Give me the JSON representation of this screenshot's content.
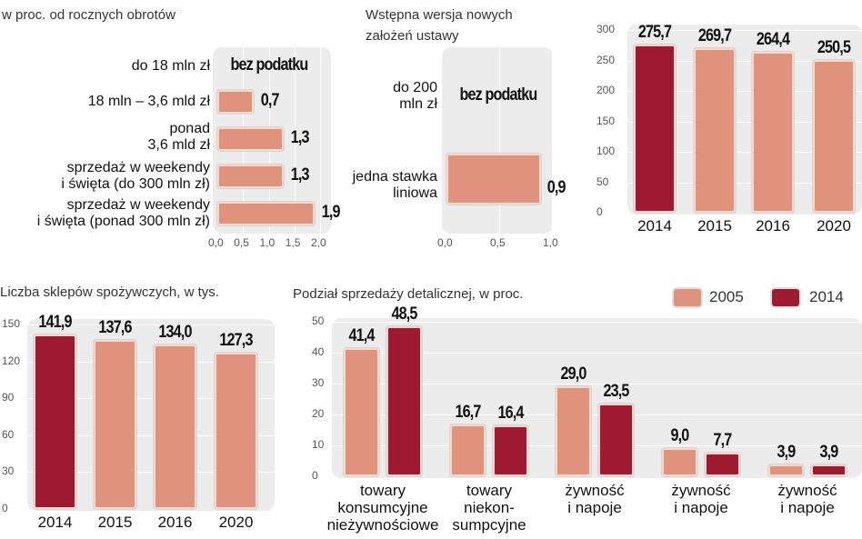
{
  "colors": {
    "light": "#e0937c",
    "dark": "#9e1a31",
    "panel": "#ececec"
  },
  "chart_data": [
    {
      "id": "tax-rates",
      "type": "bar",
      "orientation": "horizontal",
      "title": "w proc. od rocznych obrotów",
      "categories": [
        "do 18 mln zł",
        "18 mln – 3,6 mld zł",
        "ponad\n3,6 mld zł",
        "sprzedaż w weekendy\ni święta (do 300 mln zł)",
        "sprzedaż w weekendy\ni święta (ponad 300 mln zł)"
      ],
      "values": [
        null,
        0.7,
        1.3,
        1.3,
        1.9
      ],
      "value_labels": [
        "bez podatku",
        "0,7",
        "1,3",
        "1,3",
        "1,9"
      ],
      "xlim": [
        0,
        2
      ],
      "ticks": [
        "0,0",
        "0,5",
        "1,0",
        "1,5",
        "2,0"
      ]
    },
    {
      "id": "new-draft",
      "type": "bar",
      "orientation": "horizontal",
      "title": "Wstępna wersja nowych\nzałożeń ustawy",
      "categories": [
        "do 200\nmln zł",
        "jedna stawka\nliniowa"
      ],
      "values": [
        null,
        0.9
      ],
      "value_labels": [
        "bez podatku",
        "0,9"
      ],
      "xlim": [
        0,
        1
      ],
      "ticks": [
        "0,0",
        "0,5",
        "1,0"
      ]
    },
    {
      "id": "shops-total",
      "type": "bar",
      "categories": [
        "2014",
        "2015",
        "2016",
        "2020"
      ],
      "values": [
        275.7,
        269.7,
        264.4,
        250.5
      ],
      "value_labels": [
        "275,7",
        "269,7",
        "264,4",
        "250,5"
      ],
      "ylim": [
        0,
        300
      ],
      "ticks": [
        "0",
        "50",
        "100",
        "150",
        "200",
        "250",
        "300"
      ]
    },
    {
      "id": "grocery-shops",
      "type": "bar",
      "title": "Liczba sklepów spożywczych, w tys.",
      "categories": [
        "2014",
        "2015",
        "2016",
        "2020"
      ],
      "values": [
        141.9,
        137.6,
        134.0,
        127.3
      ],
      "value_labels": [
        "141,9",
        "137,6",
        "134,0",
        "127,3"
      ],
      "ylim": [
        0,
        150
      ],
      "ticks": [
        "0",
        "30",
        "60",
        "90",
        "120",
        "150"
      ]
    },
    {
      "id": "retail-split",
      "type": "bar",
      "title": "Podział sprzedaży detalicznej, w proc.",
      "categories": [
        "towary\nkonsumcyjne\nnieżywnościowe",
        "towary\nniekon-\nsumpcyjne",
        "żywność\ni napoje",
        "żywność\ni napoje",
        "żywność\ni napoje"
      ],
      "series": [
        {
          "name": "2005",
          "values": [
            41.4,
            16.7,
            29.0,
            9.0,
            3.9
          ],
          "labels": [
            "41,4",
            "16,7",
            "29,0",
            "9,0",
            "3,9"
          ]
        },
        {
          "name": "2014",
          "values": [
            48.5,
            16.4,
            23.5,
            7.7,
            3.9
          ],
          "labels": [
            "48,5",
            "16,4",
            "23,5",
            "7,7",
            "3,9"
          ]
        }
      ],
      "ylim": [
        0,
        50
      ],
      "ticks": [
        "0",
        "10",
        "20",
        "30",
        "40",
        "50"
      ],
      "legend": "top-right"
    }
  ]
}
